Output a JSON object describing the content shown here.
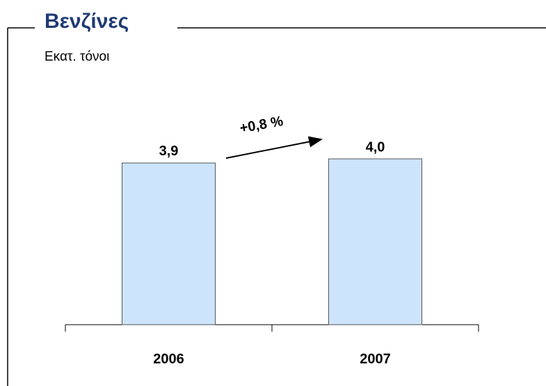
{
  "chart_data": {
    "type": "bar",
    "title": "Βενζίνες",
    "subtitle": "Εκατ. τόνοι",
    "categories": [
      "2006",
      "2007"
    ],
    "values": [
      3.9,
      4.0
    ],
    "value_labels": [
      "3,9",
      "4,0"
    ],
    "color": "#cce4fc",
    "annotation": "+0,8 %"
  }
}
